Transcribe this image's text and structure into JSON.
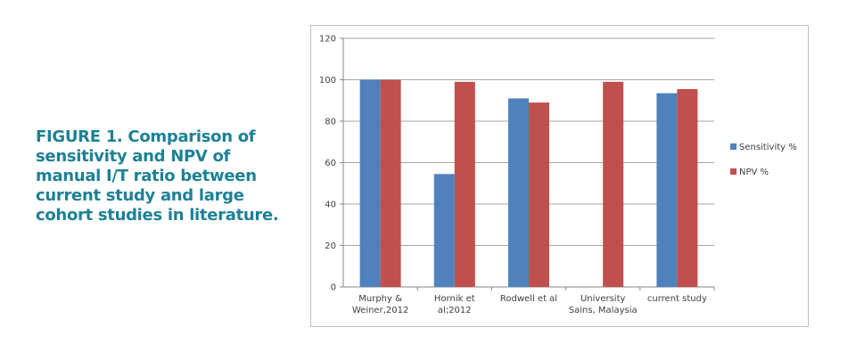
{
  "caption": "FIGURE 1. Comparison of sensitivity and NPV of manual I/T ratio between current study and large cohort studies in literature.",
  "colors": {
    "caption": "#1d8196",
    "sensitivity": "#4f81bd",
    "npv": "#c0504d",
    "grid": "#a6a6a6"
  },
  "chart_data": {
    "type": "bar",
    "categories": [
      [
        "Murphy &",
        "Weiner,2012"
      ],
      [
        "Hornik et",
        "al;2012"
      ],
      [
        "Rodwell et al"
      ],
      [
        "University",
        "Sains, Malaysia"
      ],
      [
        "current study"
      ]
    ],
    "series": [
      {
        "name": "Sensitivity %",
        "color": "#4f81bd",
        "values": [
          100,
          54.5,
          91,
          null,
          93.5
        ]
      },
      {
        "name": "NPV %",
        "color": "#c0504d",
        "values": [
          100,
          99,
          89,
          99,
          95.5
        ]
      }
    ],
    "ylim": [
      0,
      120
    ],
    "yticks": [
      0,
      20,
      40,
      60,
      80,
      100,
      120
    ],
    "grid": true,
    "legend": "right"
  }
}
